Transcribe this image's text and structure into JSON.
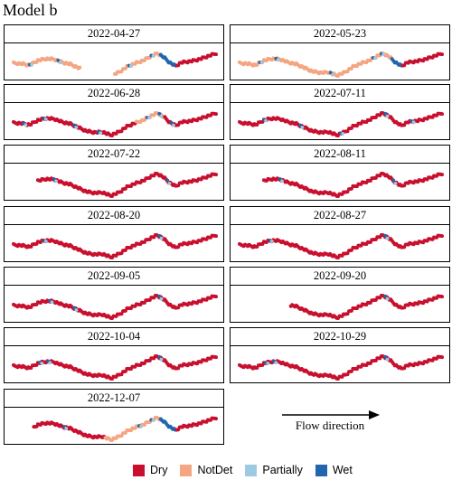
{
  "figure_title": "Model b",
  "flow_direction_label": "Flow direction",
  "chart_data": {
    "type": "scatter",
    "description_units": "points along river course, fraction of course length (0 = upstream/left, 1 = downstream/right)",
    "classes": [
      {
        "name": "Dry",
        "color": "#c8102e"
      },
      {
        "name": "NotDet",
        "color": "#f4a582"
      },
      {
        "name": "Partially",
        "color": "#9ecae1"
      },
      {
        "name": "Wet",
        "color": "#2166ac"
      }
    ],
    "panels": [
      {
        "date": "2022-04-27",
        "observed": [
          [
            0.0,
            0.33
          ],
          [
            0.5,
            1.0
          ]
        ],
        "segments": [
          {
            "from": 0.0,
            "to": 0.33,
            "class": "NotDet"
          },
          {
            "from": 0.5,
            "to": 0.72,
            "class": "NotDet"
          },
          {
            "from": 0.72,
            "to": 0.8,
            "class": "Wet"
          },
          {
            "from": 0.8,
            "to": 1.0,
            "class": "Dry"
          }
        ],
        "wet_marks": [
          0.08,
          0.22,
          0.57,
          0.68
        ]
      },
      {
        "date": "2022-05-23",
        "observed": [
          [
            0.0,
            1.0
          ]
        ],
        "segments": [
          {
            "from": 0.0,
            "to": 0.75,
            "class": "NotDet"
          },
          {
            "from": 0.75,
            "to": 0.8,
            "class": "Wet"
          },
          {
            "from": 0.8,
            "to": 1.0,
            "class": "Dry"
          }
        ],
        "wet_marks": [
          0.1,
          0.18,
          0.45,
          0.66,
          0.7
        ]
      },
      {
        "date": "2022-06-28",
        "observed": [
          [
            0.0,
            1.0
          ]
        ],
        "segments": [
          {
            "from": 0.0,
            "to": 0.6,
            "class": "Dry"
          },
          {
            "from": 0.6,
            "to": 0.74,
            "class": "NotDet"
          },
          {
            "from": 0.74,
            "to": 1.0,
            "class": "Dry"
          }
        ],
        "wet_marks": [
          0.05,
          0.15,
          0.3,
          0.42,
          0.66,
          0.72,
          0.78
        ]
      },
      {
        "date": "2022-07-11",
        "observed": [
          [
            0.0,
            1.0
          ]
        ],
        "segments": [
          {
            "from": 0.0,
            "to": 1.0,
            "class": "Dry"
          }
        ],
        "wet_marks": [
          0.12,
          0.3,
          0.5,
          0.72,
          0.85
        ]
      },
      {
        "date": "2022-07-22",
        "observed": [
          [
            0.12,
            1.0
          ]
        ],
        "segments": [
          {
            "from": 0.12,
            "to": 1.0,
            "class": "Dry"
          }
        ],
        "wet_marks": [
          0.2,
          0.76
        ]
      },
      {
        "date": "2022-08-11",
        "observed": [
          [
            0.12,
            1.0
          ]
        ],
        "segments": [
          {
            "from": 0.12,
            "to": 1.0,
            "class": "Dry"
          }
        ],
        "wet_marks": [
          0.2,
          0.76
        ]
      },
      {
        "date": "2022-08-20",
        "observed": [
          [
            0.0,
            1.0
          ]
        ],
        "segments": [
          {
            "from": 0.0,
            "to": 1.0,
            "class": "Dry"
          }
        ],
        "wet_marks": [
          0.15,
          0.72
        ]
      },
      {
        "date": "2022-08-27",
        "observed": [
          [
            0.0,
            1.0
          ]
        ],
        "segments": [
          {
            "from": 0.0,
            "to": 1.0,
            "class": "Dry"
          }
        ],
        "wet_marks": [
          0.15,
          0.72
        ]
      },
      {
        "date": "2022-09-05",
        "observed": [
          [
            0.0,
            1.0
          ]
        ],
        "segments": [
          {
            "from": 0.0,
            "to": 1.0,
            "class": "Dry"
          }
        ],
        "wet_marks": [
          0.18,
          0.3,
          0.72
        ]
      },
      {
        "date": "2022-09-20",
        "observed": [
          [
            0.25,
            1.0
          ]
        ],
        "segments": [
          {
            "from": 0.25,
            "to": 1.0,
            "class": "Dry"
          }
        ],
        "wet_marks": [
          0.72
        ]
      },
      {
        "date": "2022-10-04",
        "observed": [
          [
            0.0,
            1.0
          ]
        ],
        "segments": [
          {
            "from": 0.0,
            "to": 1.0,
            "class": "Dry"
          }
        ],
        "wet_marks": [
          0.13,
          0.17,
          0.72
        ]
      },
      {
        "date": "2022-10-29",
        "observed": [
          [
            0.0,
            1.0
          ]
        ],
        "segments": [
          {
            "from": 0.0,
            "to": 1.0,
            "class": "Dry"
          }
        ],
        "wet_marks": [
          0.13,
          0.17,
          0.72
        ]
      },
      {
        "date": "2022-12-07",
        "observed": [
          [
            0.1,
            1.0
          ]
        ],
        "segments": [
          {
            "from": 0.1,
            "to": 0.45,
            "class": "Dry"
          },
          {
            "from": 0.45,
            "to": 0.72,
            "class": "NotDet"
          },
          {
            "from": 0.72,
            "to": 0.8,
            "class": "Wet"
          },
          {
            "from": 0.8,
            "to": 1.0,
            "class": "Dry"
          }
        ],
        "wet_marks": [
          0.25,
          0.62,
          0.68
        ]
      }
    ]
  }
}
